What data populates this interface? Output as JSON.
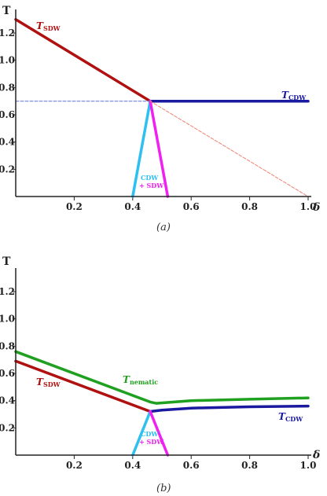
{
  "chart_data": [
    {
      "type": "line",
      "panel_caption": "(a)",
      "ylabel": "T",
      "xlabel": "δ",
      "xlim": [
        0,
        1.0
      ],
      "ylim": [
        0,
        1.35
      ],
      "xticks": [
        0.2,
        0.4,
        0.6,
        0.8,
        1.0
      ],
      "xtick_labels": [
        "0.2",
        "0.4",
        "0.6",
        "0.8",
        "1.0"
      ],
      "yticks": [
        0.2,
        0.4,
        0.6,
        0.8,
        1.0,
        1.2
      ],
      "ytick_labels": [
        "0.2",
        "0.4",
        "0.6",
        "0.8",
        "1.0",
        "1.2"
      ],
      "series": [
        {
          "name": "T_SDW",
          "label_main": "T",
          "label_sub": "SDW",
          "color": "#b01010",
          "x": [
            0.0,
            0.46
          ],
          "y": [
            1.3,
            0.7
          ],
          "style": "solid"
        },
        {
          "name": "T_CDW",
          "label_main": "T",
          "label_sub": "CDW",
          "color": "#1a1aa0",
          "x": [
            0.46,
            1.0
          ],
          "y": [
            0.7,
            0.7
          ],
          "style": "solid"
        },
        {
          "color": "#2ec0f0",
          "x": [
            0.4,
            0.46
          ],
          "y": [
            0.0,
            0.7
          ],
          "style": "solid"
        },
        {
          "color": "#f020f0",
          "x": [
            0.46,
            0.52
          ],
          "y": [
            0.7,
            0.0
          ],
          "style": "solid"
        },
        {
          "color": "#6070d0",
          "x": [
            0.0,
            0.46
          ],
          "y": [
            0.7,
            0.7
          ],
          "style": "dashed"
        },
        {
          "color": "#f08070",
          "x": [
            0.46,
            1.0
          ],
          "y": [
            0.7,
            0.0
          ],
          "style": "dashed"
        }
      ],
      "annotations": [
        {
          "line1": "CDW",
          "line2": "+ SDW",
          "color1": "#2ec0f0",
          "color2": "#f020f0"
        }
      ]
    },
    {
      "type": "line",
      "panel_caption": "(b)",
      "ylabel": "T",
      "xlabel": "δ",
      "xlim": [
        0,
        1.0
      ],
      "ylim": [
        0,
        1.35
      ],
      "xticks": [
        0.2,
        0.4,
        0.6,
        0.8,
        1.0
      ],
      "xtick_labels": [
        "0.2",
        "0.4",
        "0.6",
        "0.8",
        "1.0"
      ],
      "yticks": [
        0.2,
        0.4,
        0.6,
        0.8,
        1.0,
        1.2
      ],
      "ytick_labels": [
        "0.2",
        "0.4",
        "0.6",
        "0.8",
        "1.0",
        "1.2"
      ],
      "series": [
        {
          "name": "T_nematic",
          "label_main": "T",
          "label_sub": "nematic",
          "color": "#20a020",
          "x": [
            0.0,
            0.46,
            0.48,
            0.6,
            0.8,
            1.0
          ],
          "y": [
            0.76,
            0.39,
            0.38,
            0.4,
            0.41,
            0.42
          ],
          "style": "solid"
        },
        {
          "name": "T_SDW",
          "label_main": "T",
          "label_sub": "SDW",
          "color": "#b01010",
          "x": [
            0.0,
            0.46
          ],
          "y": [
            0.69,
            0.32
          ],
          "style": "solid"
        },
        {
          "name": "T_CDW",
          "label_main": "T",
          "label_sub": "CDW",
          "color": "#1a1aa0",
          "x": [
            0.46,
            0.5,
            0.6,
            0.8,
            1.0
          ],
          "y": [
            0.32,
            0.33,
            0.345,
            0.355,
            0.36
          ],
          "style": "solid"
        },
        {
          "color": "#2ec0f0",
          "x": [
            0.4,
            0.46
          ],
          "y": [
            0.0,
            0.32
          ],
          "style": "solid"
        },
        {
          "color": "#f020f0",
          "x": [
            0.46,
            0.52
          ],
          "y": [
            0.32,
            0.0
          ],
          "style": "solid"
        }
      ],
      "annotations": [
        {
          "line1": "CDW",
          "line2": "+ SDW",
          "color1": "#2ec0f0",
          "color2": "#f020f0"
        }
      ]
    }
  ]
}
